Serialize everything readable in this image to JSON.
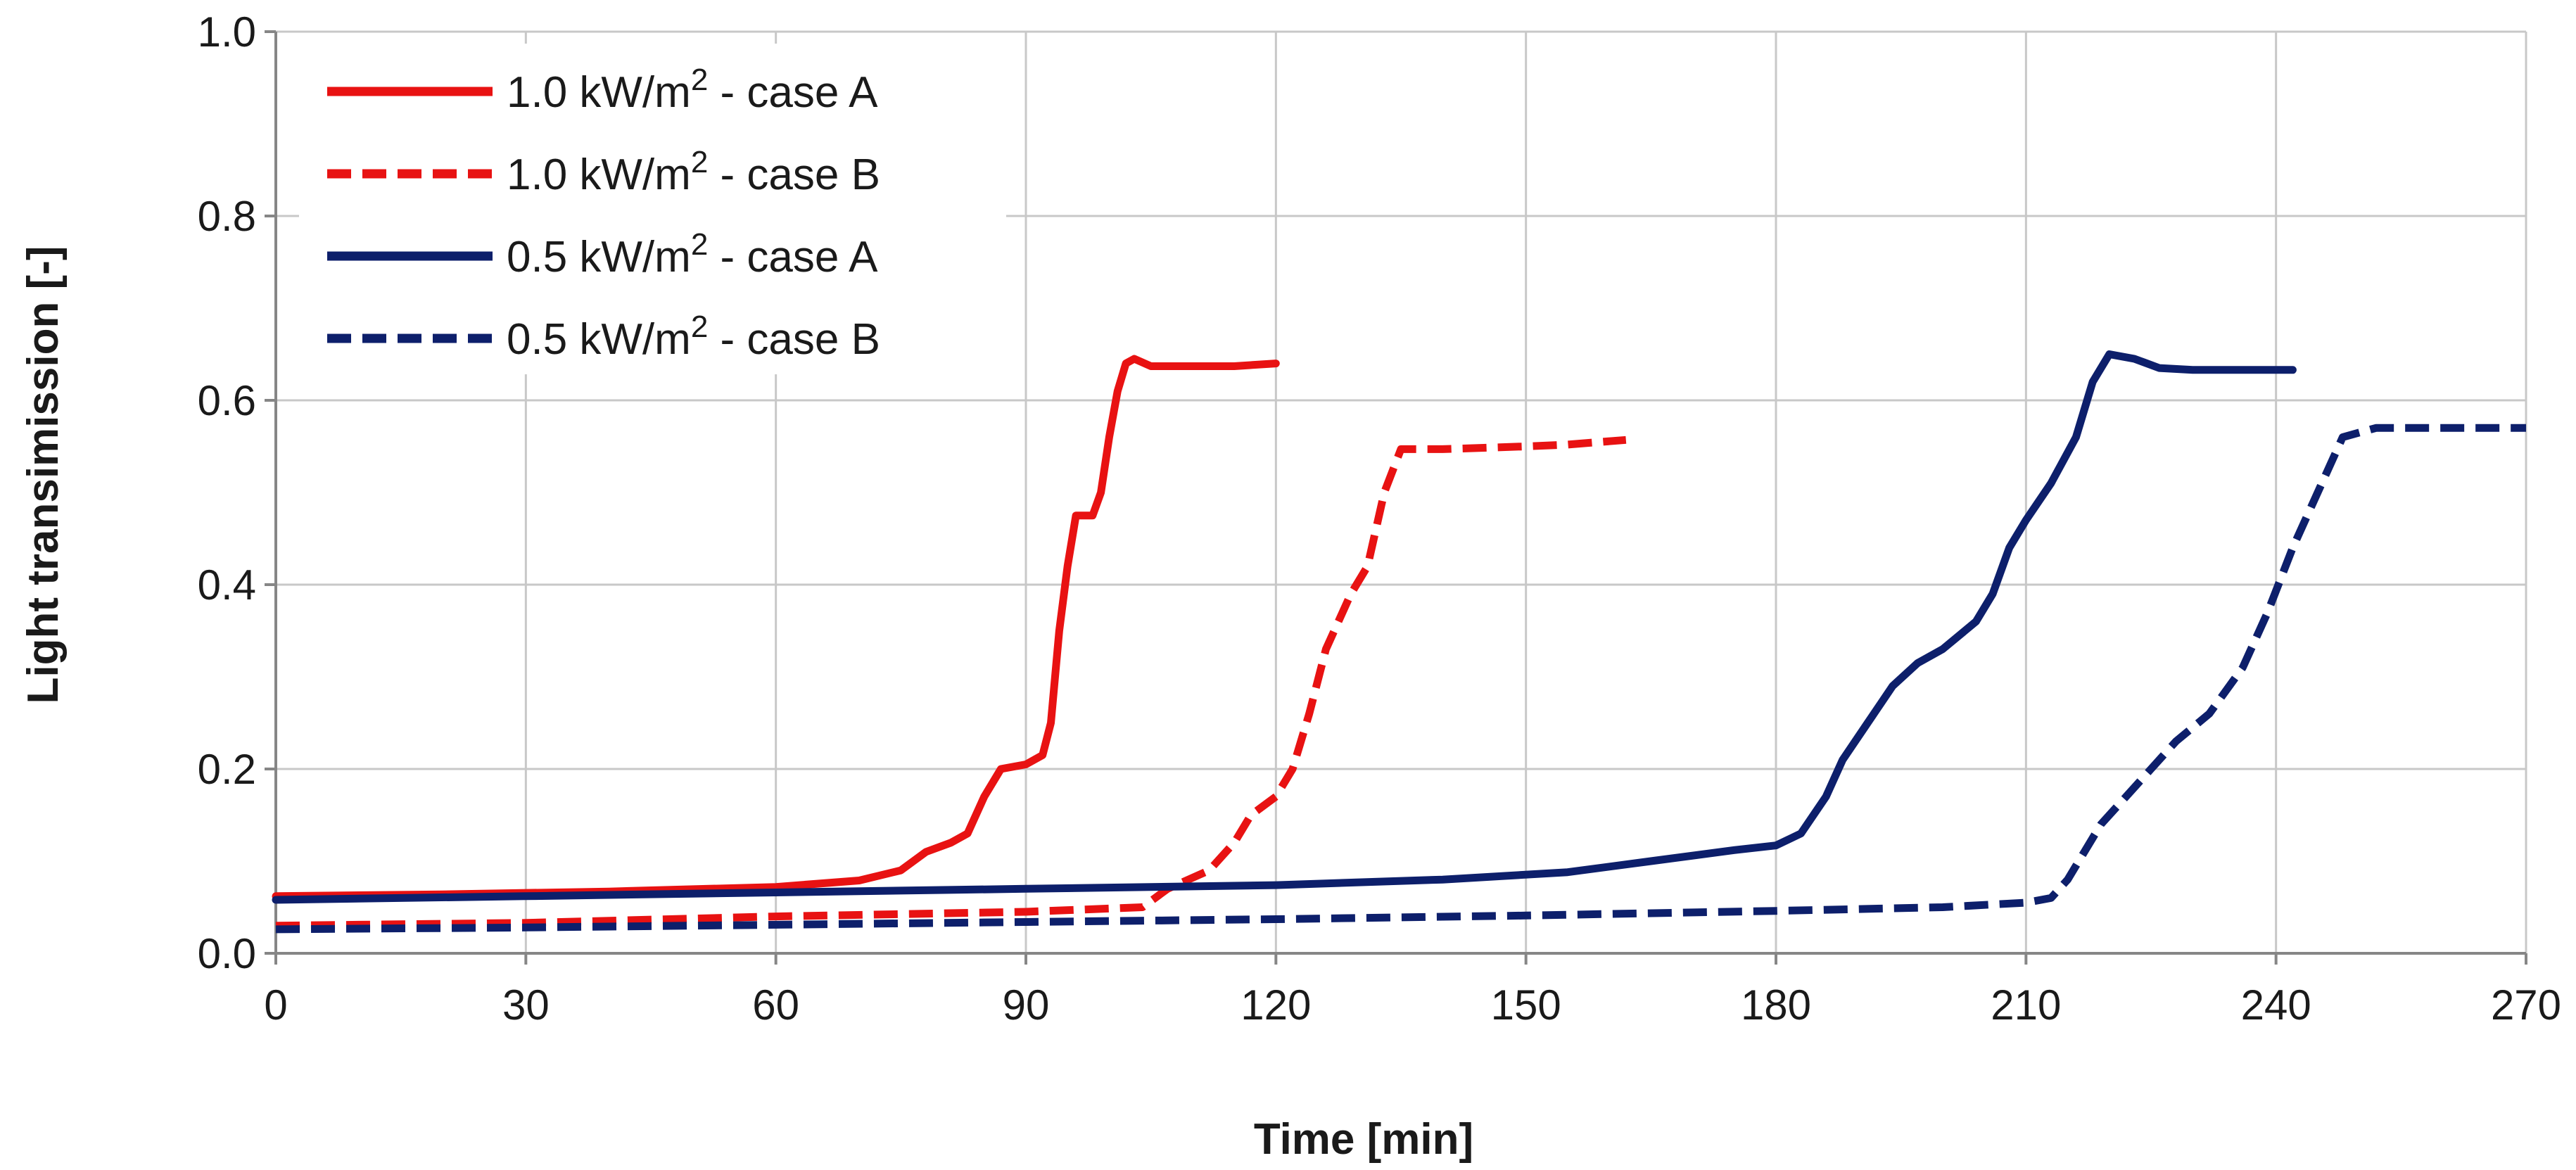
{
  "chart_data": {
    "type": "line",
    "xlabel": "Time [min]",
    "ylabel": "Light transimission [-]",
    "xlim": [
      0,
      270
    ],
    "ylim": [
      0,
      1.0
    ],
    "xticks": [
      0,
      30,
      60,
      90,
      120,
      150,
      180,
      210,
      240,
      270
    ],
    "yticks": [
      0.0,
      0.2,
      0.4,
      0.6,
      0.8,
      1.0
    ],
    "xtick_labels": [
      "0",
      "30",
      "60",
      "90",
      "120",
      "150",
      "180",
      "210",
      "240",
      "270"
    ],
    "ytick_labels": [
      "0.0",
      "0.2",
      "0.4",
      "0.6",
      "0.8",
      "1.0"
    ],
    "grid": true,
    "legend_position": "top-left",
    "series": [
      {
        "name": "1.0 kW/m2 - case A",
        "label_main": "1.0 kW/m",
        "label_sup": "2",
        "label_tail": " - case A",
        "color": "#e81212",
        "dash": "solid",
        "points": [
          [
            0,
            0.062
          ],
          [
            20,
            0.064
          ],
          [
            40,
            0.067
          ],
          [
            60,
            0.072
          ],
          [
            70,
            0.079
          ],
          [
            75,
            0.09
          ],
          [
            78,
            0.11
          ],
          [
            81,
            0.12
          ],
          [
            83,
            0.13
          ],
          [
            85,
            0.17
          ],
          [
            87,
            0.2
          ],
          [
            90,
            0.205
          ],
          [
            92,
            0.215
          ],
          [
            93,
            0.25
          ],
          [
            94,
            0.35
          ],
          [
            95,
            0.42
          ],
          [
            96,
            0.475
          ],
          [
            98,
            0.475
          ],
          [
            99,
            0.5
          ],
          [
            100,
            0.56
          ],
          [
            101,
            0.61
          ],
          [
            102,
            0.64
          ],
          [
            103,
            0.645
          ],
          [
            105,
            0.637
          ],
          [
            110,
            0.637
          ],
          [
            115,
            0.637
          ],
          [
            120,
            0.64
          ]
        ]
      },
      {
        "name": "1.0 kW/m2 - case B",
        "label_main": "1.0 kW/m",
        "label_sup": "2",
        "label_tail": " - case B",
        "color": "#e81212",
        "dash": "dashed",
        "points": [
          [
            0,
            0.03
          ],
          [
            30,
            0.033
          ],
          [
            60,
            0.04
          ],
          [
            90,
            0.045
          ],
          [
            104,
            0.05
          ],
          [
            107,
            0.07
          ],
          [
            112,
            0.09
          ],
          [
            115,
            0.12
          ],
          [
            117,
            0.15
          ],
          [
            120,
            0.17
          ],
          [
            122,
            0.2
          ],
          [
            124,
            0.26
          ],
          [
            126,
            0.33
          ],
          [
            129,
            0.39
          ],
          [
            131,
            0.42
          ],
          [
            133,
            0.5
          ],
          [
            135,
            0.547
          ],
          [
            140,
            0.547
          ],
          [
            150,
            0.55
          ],
          [
            155,
            0.552
          ],
          [
            162,
            0.557
          ]
        ]
      },
      {
        "name": "0.5 kW/m2 - case A",
        "label_main": "0.5 kW/m",
        "label_sup": "2",
        "label_tail": " - case A",
        "color": "#0d1f6b",
        "dash": "solid",
        "points": [
          [
            0,
            0.058
          ],
          [
            30,
            0.062
          ],
          [
            60,
            0.066
          ],
          [
            90,
            0.07
          ],
          [
            120,
            0.074
          ],
          [
            140,
            0.08
          ],
          [
            155,
            0.088
          ],
          [
            165,
            0.1
          ],
          [
            175,
            0.112
          ],
          [
            180,
            0.117
          ],
          [
            183,
            0.13
          ],
          [
            186,
            0.17
          ],
          [
            188,
            0.21
          ],
          [
            191,
            0.25
          ],
          [
            194,
            0.29
          ],
          [
            197,
            0.315
          ],
          [
            200,
            0.33
          ],
          [
            204,
            0.36
          ],
          [
            206,
            0.39
          ],
          [
            208,
            0.44
          ],
          [
            210,
            0.47
          ],
          [
            213,
            0.51
          ],
          [
            216,
            0.56
          ],
          [
            218,
            0.62
          ],
          [
            220,
            0.65
          ],
          [
            223,
            0.645
          ],
          [
            226,
            0.635
          ],
          [
            230,
            0.633
          ],
          [
            236,
            0.633
          ],
          [
            242,
            0.633
          ]
        ]
      },
      {
        "name": "0.5 kW/m2 - case B",
        "label_main": "0.5 kW/m",
        "label_sup": "2",
        "label_tail": " - case B",
        "color": "#0d1f6b",
        "dash": "dashed",
        "points": [
          [
            0,
            0.026
          ],
          [
            30,
            0.028
          ],
          [
            60,
            0.031
          ],
          [
            90,
            0.034
          ],
          [
            120,
            0.037
          ],
          [
            150,
            0.041
          ],
          [
            180,
            0.046
          ],
          [
            200,
            0.05
          ],
          [
            210,
            0.055
          ],
          [
            213,
            0.06
          ],
          [
            215,
            0.08
          ],
          [
            217,
            0.11
          ],
          [
            219,
            0.14
          ],
          [
            222,
            0.17
          ],
          [
            225,
            0.2
          ],
          [
            228,
            0.23
          ],
          [
            232,
            0.26
          ],
          [
            236,
            0.31
          ],
          [
            239,
            0.37
          ],
          [
            242,
            0.44
          ],
          [
            245,
            0.5
          ],
          [
            248,
            0.56
          ],
          [
            252,
            0.57
          ],
          [
            262,
            0.57
          ],
          [
            270,
            0.57
          ]
        ]
      }
    ]
  }
}
